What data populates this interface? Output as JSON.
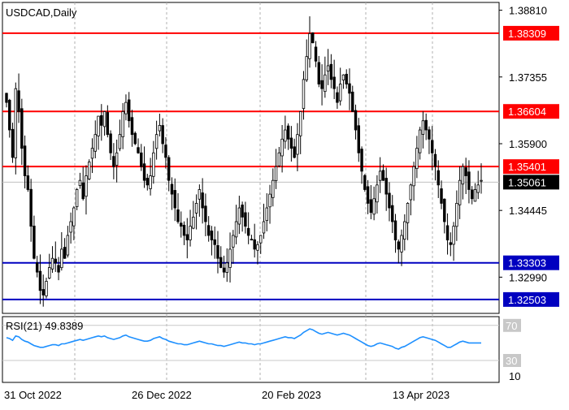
{
  "chart_data": {
    "type": "candlestick",
    "symbol_label": "USDCAD,Daily",
    "price_axis": {
      "ylim": [
        1.322,
        1.3898
      ],
      "ticks": [
        "1.38810",
        "1.37355",
        "1.35900",
        "1.34445",
        "1.32990"
      ],
      "current_price": "1.35061"
    },
    "levels": [
      {
        "value": "1.38309",
        "color": "#ff0000"
      },
      {
        "value": "1.36604",
        "color": "#ff0000"
      },
      {
        "value": "1.35401",
        "color": "#ff0000"
      },
      {
        "value": "1.33303",
        "color": "#0000c0"
      },
      {
        "value": "1.32503",
        "color": "#0000c0"
      }
    ],
    "x_dates": [
      "31 Oct 2022",
      "26 Dec 2022",
      "20 Feb 2023",
      "13 Apr 2023"
    ],
    "close_series": [
      1.368,
      1.362,
      1.356,
      1.371,
      1.366,
      1.358,
      1.352,
      1.349,
      1.341,
      1.334,
      1.331,
      1.327,
      1.326,
      1.329,
      1.332,
      1.334,
      1.333,
      1.331,
      1.336,
      1.334,
      1.339,
      1.342,
      1.345,
      1.349,
      1.351,
      1.347,
      1.352,
      1.355,
      1.358,
      1.361,
      1.365,
      1.363,
      1.366,
      1.361,
      1.357,
      1.354,
      1.357,
      1.361,
      1.366,
      1.368,
      1.364,
      1.361,
      1.359,
      1.357,
      1.354,
      1.351,
      1.35,
      1.352,
      1.357,
      1.361,
      1.363,
      1.359,
      1.356,
      1.351,
      1.348,
      1.345,
      1.342,
      1.341,
      1.339,
      1.338,
      1.341,
      1.343,
      1.346,
      1.349,
      1.345,
      1.342,
      1.339,
      1.338,
      1.337,
      1.334,
      1.332,
      1.331,
      1.333,
      1.336,
      1.339,
      1.342,
      1.345,
      1.343,
      1.341,
      1.339,
      1.338,
      1.336,
      1.337,
      1.339,
      1.342,
      1.345,
      1.348,
      1.351,
      1.354,
      1.357,
      1.36,
      1.362,
      1.36,
      1.358,
      1.356,
      1.361,
      1.366,
      1.373,
      1.378,
      1.383,
      1.381,
      1.377,
      1.372,
      1.371,
      1.374,
      1.376,
      1.373,
      1.371,
      1.368,
      1.372,
      1.374,
      1.372,
      1.37,
      1.366,
      1.362,
      1.357,
      1.353,
      1.349,
      1.346,
      1.344,
      1.347,
      1.35,
      1.353,
      1.351,
      1.348,
      1.345,
      1.342,
      1.338,
      1.336,
      1.339,
      1.342,
      1.346,
      1.35,
      1.354,
      1.358,
      1.362,
      1.364,
      1.362,
      1.36,
      1.357,
      1.354,
      1.35,
      1.346,
      1.342,
      1.338,
      1.337,
      1.341,
      1.346,
      1.351,
      1.354,
      1.352,
      1.349,
      1.347,
      1.349,
      1.35,
      1.351
    ],
    "rsi": {
      "label": "RSI(21) 49.8389",
      "levels": [
        {
          "value": "70"
        },
        {
          "value": "30"
        }
      ],
      "scale_label": "10",
      "ylim": [
        5,
        80
      ],
      "values": [
        56,
        55,
        53,
        58,
        57,
        54,
        52,
        51,
        49,
        47,
        46,
        45,
        45,
        46,
        47,
        48,
        48,
        47,
        49,
        49,
        50,
        51,
        52,
        53,
        54,
        53,
        54,
        55,
        56,
        57,
        58,
        57,
        58,
        56,
        55,
        54,
        55,
        56,
        58,
        59,
        57,
        56,
        55,
        54,
        53,
        52,
        52,
        53,
        55,
        56,
        57,
        55,
        54,
        52,
        51,
        50,
        49,
        49,
        48,
        48,
        49,
        50,
        51,
        52,
        51,
        50,
        49,
        49,
        48,
        47,
        47,
        46,
        47,
        48,
        49,
        50,
        51,
        50,
        50,
        49,
        49,
        48,
        49,
        49,
        50,
        51,
        52,
        53,
        54,
        55,
        56,
        57,
        56,
        56,
        55,
        57,
        59,
        62,
        64,
        66,
        65,
        63,
        61,
        60,
        61,
        62,
        61,
        60,
        59,
        60,
        61,
        60,
        59,
        57,
        55,
        53,
        51,
        49,
        47,
        46,
        47,
        49,
        50,
        49,
        48,
        47,
        46,
        44,
        43,
        45,
        46,
        48,
        50,
        52,
        54,
        56,
        57,
        56,
        55,
        54,
        53,
        51,
        49,
        47,
        45,
        45,
        47,
        49,
        51,
        52,
        51,
        50,
        50,
        50,
        50,
        50
      ]
    }
  }
}
